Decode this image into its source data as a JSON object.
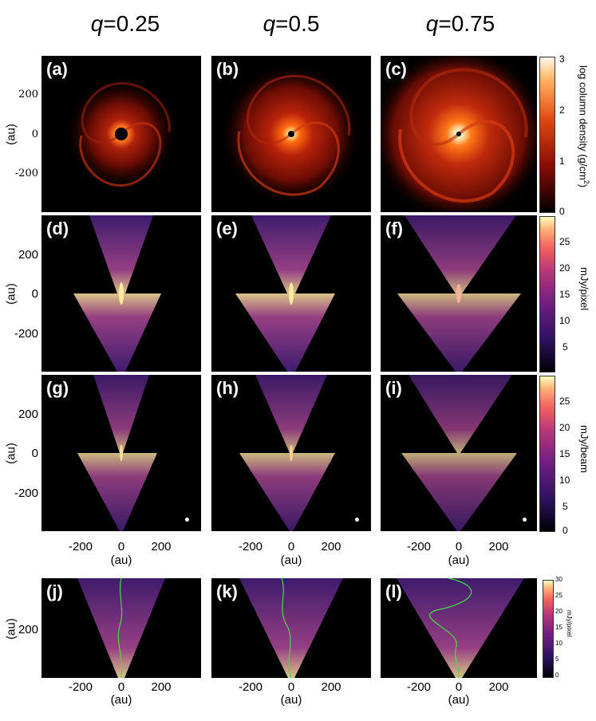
{
  "columns": [
    {
      "q_label": "q",
      "q_value": "=0.25"
    },
    {
      "q_label": "q",
      "q_value": "=0.5"
    },
    {
      "q_label": "q",
      "q_value": "=0.75"
    }
  ],
  "panels": {
    "a": "(a)",
    "b": "(b)",
    "c": "(c)",
    "d": "(d)",
    "e": "(e)",
    "f": "(f)",
    "g": "(g)",
    "h": "(h)",
    "i": "(i)",
    "j": "(j)",
    "k": "(k)",
    "l": "(l)"
  },
  "axes": {
    "unit": "(au)",
    "y_ticks_rows": [
      "200",
      "0",
      "-200"
    ],
    "x_ticks": [
      "-200",
      "0",
      "200"
    ],
    "y_tick_bottom": "200"
  },
  "colorbars": {
    "row1": {
      "label": "log column density (g/cm",
      "label_sup": "2",
      "label_end": ")",
      "ticks": [
        "3",
        "2",
        "1",
        "0"
      ]
    },
    "row2": {
      "label": "mJy/pixel",
      "ticks": [
        "25",
        "20",
        "15",
        "10",
        "5"
      ]
    },
    "row3": {
      "label": "mJy/beam",
      "ticks": [
        "25",
        "20",
        "15",
        "10",
        "5",
        "0"
      ]
    },
    "row4": {
      "label": "mJy/pixel",
      "ticks": [
        "30",
        "25",
        "20",
        "15",
        "10",
        "5",
        "0"
      ]
    }
  }
}
